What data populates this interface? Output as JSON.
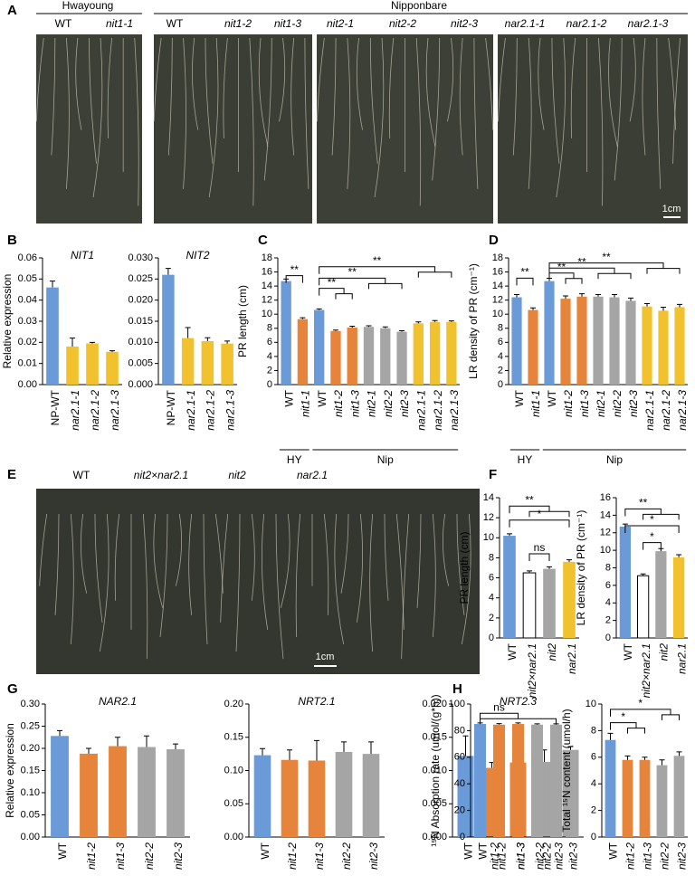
{
  "panel_labels": [
    "A",
    "B",
    "C",
    "D",
    "E",
    "F",
    "G",
    "H"
  ],
  "photo_a": {
    "groups": [
      "Hwayoung",
      "Nipponbare"
    ],
    "genotypes": [
      "WT",
      "nit1-1",
      "WT",
      "nit1-2",
      "nit1-3",
      "nit2-1",
      "nit2-2",
      "nit2-3",
      "nar2.1-1",
      "nar2.1-2",
      "nar2.1-3"
    ],
    "scale": "1cm"
  },
  "photo_e": {
    "genotypes": [
      "WT",
      "nit2×nar2.1",
      "nit2",
      "nar2.1"
    ],
    "scale": "1cm"
  },
  "chart_data": [
    {
      "type": "bar",
      "title": "NIT1",
      "y_label": "Relative expression",
      "categories": [
        "NP-WT",
        "nar2.1-1",
        "nar2.1-2",
        "nar2.1-3"
      ],
      "values": [
        0.046,
        0.018,
        0.0195,
        0.0155
      ],
      "errors": [
        0.003,
        0.004,
        0.0005,
        0.0005
      ],
      "colors": [
        "#6a9ad8",
        "#f2c12e",
        "#f2c12e",
        "#f2c12e"
      ],
      "ylim": [
        0,
        0.06
      ],
      "yticks": [
        {
          "value": 0,
          "label": "0.00"
        },
        {
          "value": 0.01,
          "label": "0.01"
        },
        {
          "value": 0.02,
          "label": "0.02"
        },
        {
          "value": 0.03,
          "label": "0.03"
        },
        {
          "value": 0.04,
          "label": "0.04"
        },
        {
          "value": 0.05,
          "label": "0.05"
        },
        {
          "value": 0.06,
          "label": "0.06"
        }
      ]
    },
    {
      "type": "bar",
      "title": "NIT2",
      "categories": [
        "NP-WT",
        "nar2.1-1",
        "nar2.1-2",
        "nar2.1-3"
      ],
      "values": [
        0.026,
        0.011,
        0.0103,
        0.0097
      ],
      "errors": [
        0.0015,
        0.0025,
        0.0008,
        0.0006
      ],
      "colors": [
        "#6a9ad8",
        "#f2c12e",
        "#f2c12e",
        "#f2c12e"
      ],
      "ylim": [
        0,
        0.03
      ],
      "yticks": [
        {
          "value": 0,
          "label": "0.000"
        },
        {
          "value": 0.005,
          "label": "0.005"
        },
        {
          "value": 0.01,
          "label": "0.010"
        },
        {
          "value": 0.015,
          "label": "0.015"
        },
        {
          "value": 0.02,
          "label": "0.020"
        },
        {
          "value": 0.025,
          "label": "0.025"
        },
        {
          "value": 0.03,
          "label": "0.030"
        }
      ]
    },
    {
      "type": "bar",
      "y_label": "PR length (cm)",
      "categories": [
        "WT",
        "nit1-1",
        "WT",
        "nit1-2",
        "nit1-3",
        "nit2-1",
        "nit2-2",
        "nit2-3",
        "nar2.1-1",
        "nar2.1-2",
        "nar2.1-3"
      ],
      "values": [
        14.7,
        9.3,
        10.6,
        7.6,
        8.1,
        8.2,
        8.0,
        7.5,
        8.7,
        8.9,
        8.9
      ],
      "errors": [
        0.3,
        0.2,
        0.15,
        0.15,
        0.2,
        0.15,
        0.2,
        0.15,
        0.2,
        0.2,
        0.15
      ],
      "colors": [
        "#6a9ad8",
        "#e5843a",
        "#6a9ad8",
        "#e5843a",
        "#e5843a",
        "#a5a5a5",
        "#a5a5a5",
        "#a5a5a5",
        "#f2c12e",
        "#f2c12e",
        "#f2c12e"
      ],
      "ylim": [
        0,
        18
      ],
      "yticks": [
        0,
        2,
        4,
        6,
        8,
        10,
        12,
        14,
        16,
        18
      ],
      "annotations": [
        "**",
        "**",
        "**",
        "**"
      ],
      "group_labels": [
        "HY",
        "Nip"
      ]
    },
    {
      "type": "bar",
      "y_label": "LR density of PR (cm⁻¹)",
      "categories": [
        "WT",
        "nit1-1",
        "WT",
        "nit1-2",
        "nit1-3",
        "nit2-1",
        "nit2-2",
        "nit2-3",
        "nar2.1-1",
        "nar2.1-2",
        "nar2.1-3"
      ],
      "values": [
        12.4,
        10.6,
        14.7,
        12.2,
        12.5,
        12.5,
        12.4,
        11.9,
        11.1,
        10.5,
        11.0
      ],
      "errors": [
        0.4,
        0.3,
        0.4,
        0.4,
        0.4,
        0.3,
        0.4,
        0.4,
        0.4,
        0.5,
        0.4
      ],
      "colors": [
        "#6a9ad8",
        "#e5843a",
        "#6a9ad8",
        "#e5843a",
        "#e5843a",
        "#a5a5a5",
        "#a5a5a5",
        "#a5a5a5",
        "#f2c12e",
        "#f2c12e",
        "#f2c12e"
      ],
      "ylim": [
        0,
        18
      ],
      "yticks": [
        0,
        2,
        4,
        6,
        8,
        10,
        12,
        14,
        16,
        18
      ],
      "annotations": [
        "**",
        "**",
        "**",
        "**"
      ],
      "group_labels": [
        "HY",
        "Nip"
      ]
    },
    {
      "type": "bar",
      "y_label": "PR length (cm)",
      "categories": [
        "WT",
        "nit2×nar2.1",
        "nit2",
        "nar2.1"
      ],
      "values": [
        10.2,
        6.5,
        6.9,
        7.6
      ],
      "errors": [
        0.2,
        0.2,
        0.2,
        0.2
      ],
      "colors": [
        "#6a9ad8",
        "#ffffff",
        "#a5a5a5",
        "#f2c12e"
      ],
      "ylim": [
        0,
        14
      ],
      "yticks": [
        0,
        2,
        4,
        6,
        8,
        10,
        12,
        14
      ],
      "annotations": [
        "**",
        "*",
        "ns"
      ]
    },
    {
      "type": "bar",
      "y_label": "LR density of PR (cm⁻¹)",
      "categories": [
        "WT",
        "nit2×nar2.1",
        "nit2",
        "nar2.1"
      ],
      "values": [
        12.7,
        7.1,
        9.9,
        9.2
      ],
      "errors": [
        0.3,
        0.2,
        0.3,
        0.3
      ],
      "colors": [
        "#6a9ad8",
        "#ffffff",
        "#a5a5a5",
        "#f2c12e"
      ],
      "ylim": [
        0,
        16
      ],
      "yticks": [
        0,
        2,
        4,
        6,
        8,
        10,
        12,
        14,
        16
      ],
      "annotations": [
        "**",
        "*",
        "*"
      ]
    },
    {
      "type": "bar",
      "title": "NAR2.1",
      "y_label": "Relative expression",
      "categories": [
        "WT",
        "nit1-2",
        "nit1-3",
        "nit2-2",
        "nit2-3"
      ],
      "values": [
        0.228,
        0.188,
        0.205,
        0.203,
        0.198
      ],
      "errors": [
        0.012,
        0.012,
        0.02,
        0.025,
        0.012
      ],
      "colors": [
        "#6a9ad8",
        "#e5843a",
        "#e5843a",
        "#a5a5a5",
        "#a5a5a5"
      ],
      "ylim": [
        0,
        0.3
      ],
      "yticks": [
        {
          "value": 0,
          "label": "0.00"
        },
        {
          "value": 0.05,
          "label": "0.05"
        },
        {
          "value": 0.1,
          "label": "0.10"
        },
        {
          "value": 0.15,
          "label": "0.15"
        },
        {
          "value": 0.2,
          "label": "0.20"
        },
        {
          "value": 0.25,
          "label": "0.25"
        },
        {
          "value": 0.3,
          "label": "0.30"
        }
      ]
    },
    {
      "type": "bar",
      "title": "NRT2.1",
      "categories": [
        "WT",
        "nit1-2",
        "nit1-3",
        "nit2-2",
        "nit2-3"
      ],
      "values": [
        0.123,
        0.116,
        0.115,
        0.128,
        0.125
      ],
      "errors": [
        0.01,
        0.015,
        0.03,
        0.015,
        0.018
      ],
      "colors": [
        "#6a9ad8",
        "#e5843a",
        "#e5843a",
        "#a5a5a5",
        "#a5a5a5"
      ],
      "ylim": [
        0,
        0.2
      ],
      "yticks": [
        {
          "value": 0,
          "label": "0.00"
        },
        {
          "value": 0.05,
          "label": "0.05"
        },
        {
          "value": 0.1,
          "label": "0.10"
        },
        {
          "value": 0.15,
          "label": "0.15"
        },
        {
          "value": 0.2,
          "label": "0.20"
        }
      ]
    },
    {
      "type": "bar",
      "title": "NRT2.3",
      "categories": [
        "WT",
        "nit1-2",
        "nit1-3",
        "nit2-2",
        "nit2-3"
      ],
      "values": [
        0.0122,
        0.0104,
        0.0112,
        0.0113,
        0.0131
      ],
      "errors": [
        0.003,
        0.0008,
        0.0015,
        0.0018,
        0.0005
      ],
      "colors": [
        "#6a9ad8",
        "#e5843a",
        "#e5843a",
        "#a5a5a5",
        "#a5a5a5"
      ],
      "ylim": [
        0,
        0.02
      ],
      "yticks": [
        {
          "value": 0,
          "label": "0.000"
        },
        {
          "value": 0.005,
          "label": "0.005"
        },
        {
          "value": 0.01,
          "label": "0.010"
        },
        {
          "value": 0.015,
          "label": "0.015"
        },
        {
          "value": 0.02,
          "label": "0.020"
        }
      ]
    },
    {
      "type": "bar",
      "y_label": "¹⁵N Absorption rate (umol/(g*h))",
      "categories": [
        "WT",
        "nit1-2",
        "nit1-3",
        "nit2-2",
        "nit2-3"
      ],
      "values": [
        85,
        84.5,
        85,
        84.5,
        84.5
      ],
      "errors": [
        0.8,
        0.8,
        0.8,
        0.6,
        0.6
      ],
      "colors": [
        "#6a9ad8",
        "#e5843a",
        "#e5843a",
        "#a5a5a5",
        "#a5a5a5"
      ],
      "ylim": [
        0,
        100
      ],
      "yticks": [
        0,
        20,
        40,
        60,
        80,
        100
      ],
      "annotations": [
        "ns"
      ]
    },
    {
      "type": "bar",
      "y_label": "Total ¹⁵N content (umol/h)",
      "categories": [
        "WT",
        "nit1-2",
        "nit1-3",
        "nit2-2",
        "nit2-3"
      ],
      "values": [
        7.3,
        5.8,
        5.8,
        5.4,
        6.1
      ],
      "errors": [
        0.5,
        0.3,
        0.2,
        0.4,
        0.3
      ],
      "colors": [
        "#6a9ad8",
        "#e5843a",
        "#e5843a",
        "#a5a5a5",
        "#a5a5a5"
      ],
      "ylim": [
        0,
        10
      ],
      "yticks": [
        0,
        2,
        4,
        6,
        8,
        10
      ],
      "annotations": [
        "*",
        "*"
      ]
    }
  ]
}
